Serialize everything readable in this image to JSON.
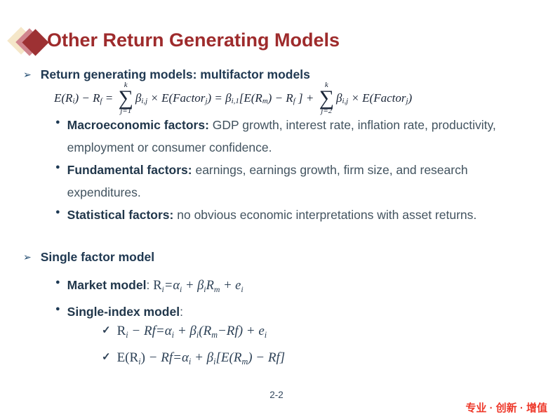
{
  "slide": {
    "title": "Other Return Generating Models",
    "page_number": "2-2",
    "footer_slogan": "专业 · 创新 · 增值"
  },
  "colors": {
    "title_red": "#9e2b2c",
    "slogan_red": "#ee392b",
    "heading_navy": "#203952",
    "body_navy": "#42535f",
    "diamond_cream": "#f5e7c9",
    "diamond_pink": "#d0868e",
    "diamond_red": "#9d3133"
  },
  "icons": {
    "arrow": "➢",
    "dot": "●",
    "check": "✓",
    "sum": "∑"
  },
  "bullets": {
    "l1_multifactor": "Return generating models: multifactor models",
    "macro_bold": "Macroeconomic factors:",
    "macro_text": " GDP growth, interest rate, inflation rate, productivity, employment or consumer confidence.",
    "fundamental_bold": "Fundamental factors:",
    "fundamental_text": " earnings, earnings growth, firm size, and research expenditures.",
    "statistical_bold": "Statistical factors:",
    "statistical_text": " no obvious economic interpretations with asset returns.",
    "l1_single_factor": "Single factor model",
    "market_bold": "Market model",
    "market_colon": ": ",
    "single_index_bold": "Single-index model",
    "single_index_colon": ":"
  },
  "formulas": {
    "main": [
      {
        "t": "E(R",
        "c": "it"
      },
      {
        "t": "i",
        "c": "sub"
      },
      {
        "t": ") − R",
        "c": "it"
      },
      {
        "t": "f",
        "c": "sub"
      },
      {
        "t": " = ",
        "c": "it"
      },
      {
        "c": "sum",
        "top": "k",
        "bot": "j=1"
      },
      {
        "t": "β",
        "c": "it"
      },
      {
        "t": "i,j",
        "c": "sub"
      },
      {
        "t": " × E(Factor",
        "c": "it"
      },
      {
        "t": "j",
        "c": "sub"
      },
      {
        "t": ") = β",
        "c": "it"
      },
      {
        "t": "i,1",
        "c": "sub"
      },
      {
        "t": "[E(R",
        "c": "it"
      },
      {
        "t": "m",
        "c": "sub"
      },
      {
        "t": ") − R",
        "c": "it"
      },
      {
        "t": "f",
        "c": "sub"
      },
      {
        "t": " ] + ",
        "c": "it"
      },
      {
        "c": "sum",
        "top": "k",
        "bot": "j=2"
      },
      {
        "t": "β",
        "c": "it"
      },
      {
        "t": "i,j",
        "c": "sub"
      },
      {
        "t": " × E(Factor",
        "c": "it"
      },
      {
        "t": "j",
        "c": "sub"
      },
      {
        "t": ")",
        "c": "it"
      }
    ],
    "market": [
      {
        "t": "R",
        "c": "up"
      },
      {
        "t": "i",
        "c": "sub"
      },
      {
        "t": "=α",
        "c": "it"
      },
      {
        "t": "i",
        "c": "sub"
      },
      {
        "t": " + β",
        "c": "it"
      },
      {
        "t": "i",
        "c": "sub"
      },
      {
        "t": "R",
        "c": "it"
      },
      {
        "t": "m",
        "c": "sub"
      },
      {
        "t": " + e",
        "c": "it"
      },
      {
        "t": "i",
        "c": "sub"
      }
    ],
    "check1": [
      {
        "t": "R",
        "c": "up"
      },
      {
        "t": "i",
        "c": "sub"
      },
      {
        "t": " − Rf",
        "c": "it"
      },
      {
        "t": "=α",
        "c": "it"
      },
      {
        "t": "i",
        "c": "sub"
      },
      {
        "t": " + β",
        "c": "it"
      },
      {
        "t": "i",
        "c": "sub"
      },
      {
        "t": "(R",
        "c": "it"
      },
      {
        "t": "m",
        "c": "sub"
      },
      {
        "t": "−Rf",
        "c": "it"
      },
      {
        "t": ") + e",
        "c": "it"
      },
      {
        "t": "i",
        "c": "sub"
      }
    ],
    "check2": [
      {
        "t": "E(R",
        "c": "up"
      },
      {
        "t": "i",
        "c": "sub"
      },
      {
        "t": ")",
        "c": "up"
      },
      {
        "t": " − Rf",
        "c": "it"
      },
      {
        "t": "=α",
        "c": "it"
      },
      {
        "t": "i",
        "c": "sub"
      },
      {
        "t": " + β",
        "c": "it"
      },
      {
        "t": "i",
        "c": "sub"
      },
      {
        "t": "[E(R",
        "c": "it"
      },
      {
        "t": "m",
        "c": "sub"
      },
      {
        "t": ") − Rf]",
        "c": "it"
      }
    ]
  }
}
